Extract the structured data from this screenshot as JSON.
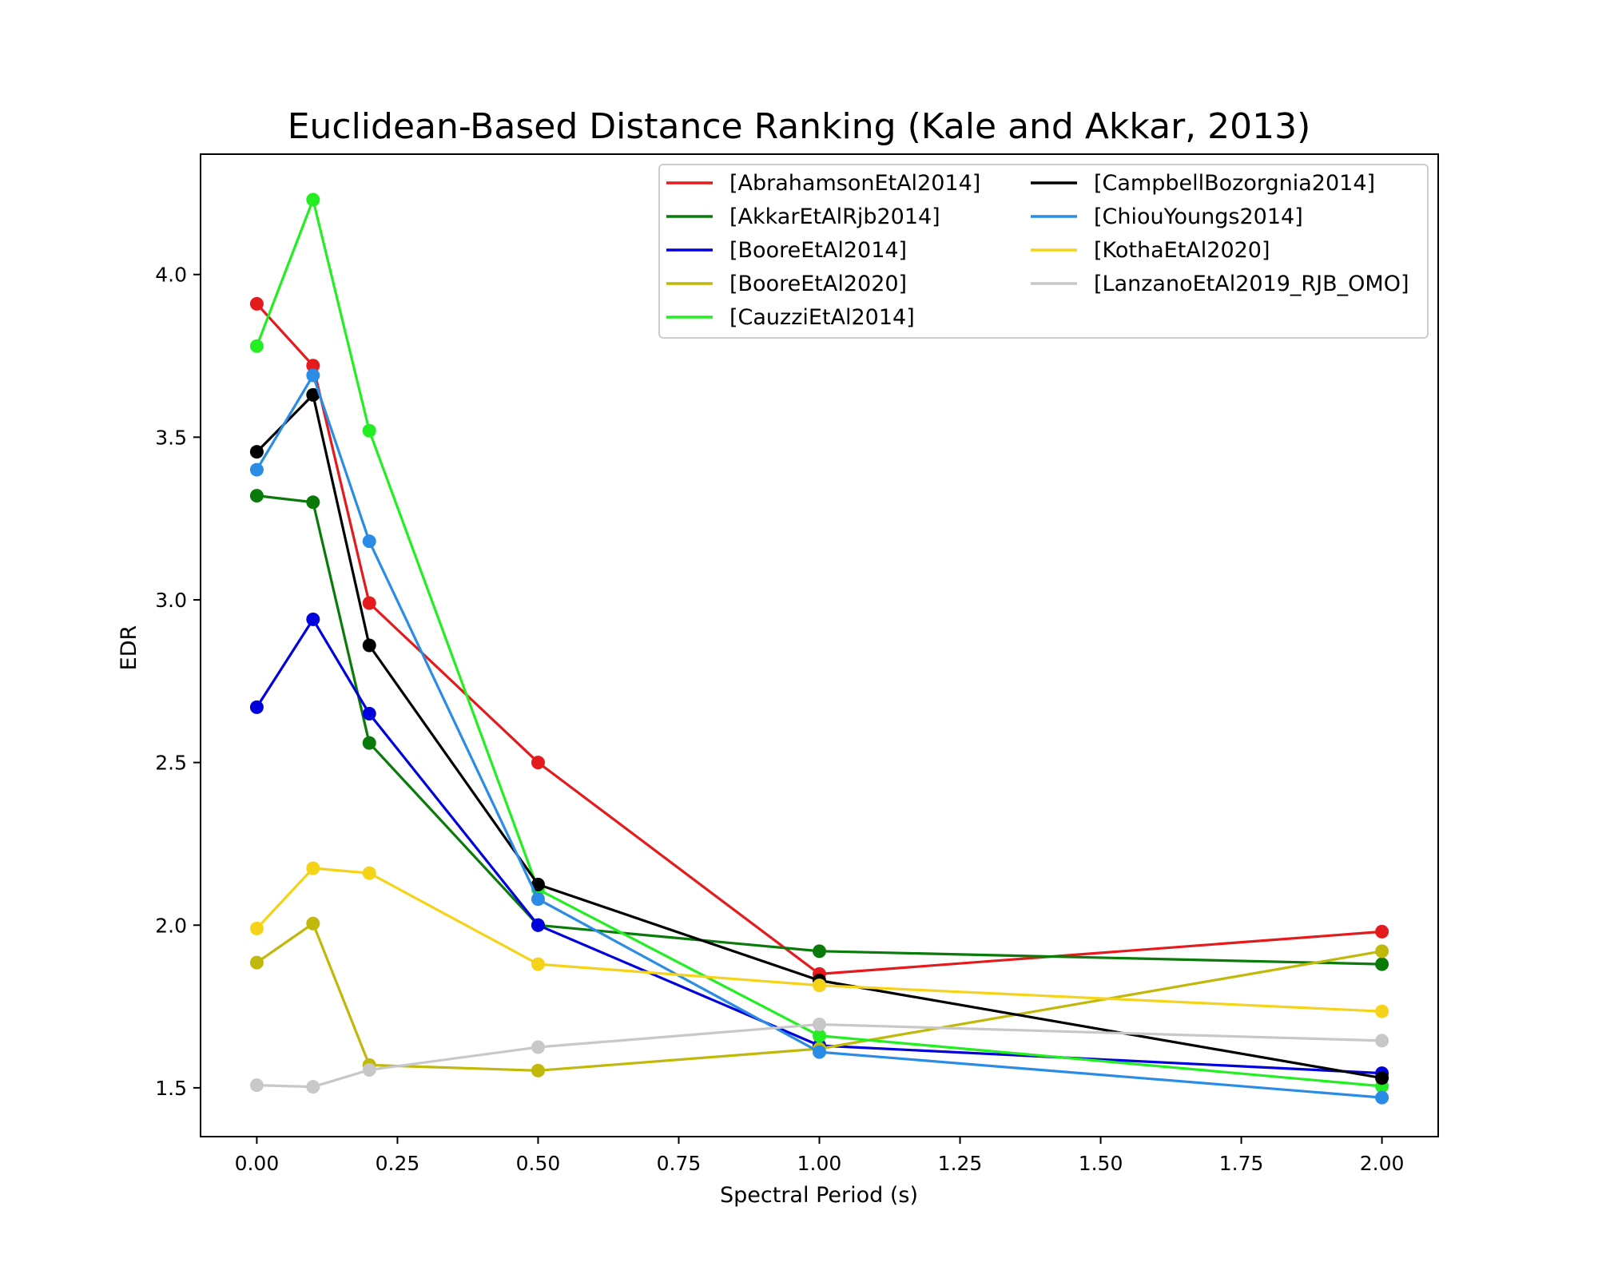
{
  "chart_data": {
    "type": "line",
    "title": "Euclidean-Based Distance Ranking (Kale and Akkar, 2013)",
    "xlabel": "Spectral Period (s)",
    "ylabel": "EDR",
    "xlim": [
      -0.1,
      2.1
    ],
    "ylim": [
      1.35,
      4.37
    ],
    "xticks": [
      0.0,
      0.25,
      0.5,
      0.75,
      1.0,
      1.25,
      1.5,
      1.75,
      2.0
    ],
    "xtick_labels": [
      "0.00",
      "0.25",
      "0.50",
      "0.75",
      "1.00",
      "1.25",
      "1.50",
      "1.75",
      "2.00"
    ],
    "yticks": [
      1.5,
      2.0,
      2.5,
      3.0,
      3.5,
      4.0
    ],
    "ytick_labels": [
      "1.5",
      "2.0",
      "2.5",
      "3.0",
      "3.5",
      "4.0"
    ],
    "grid": false,
    "legend_position": "top-right",
    "legend_columns": 2,
    "x": [
      0.0,
      0.1,
      0.2,
      0.5,
      1.0,
      2.0
    ],
    "series": [
      {
        "name": "[AbrahamsonEtAl2014]",
        "color": "#e41a1c",
        "values": [
          3.91,
          3.72,
          2.99,
          2.5,
          1.85,
          1.98
        ]
      },
      {
        "name": "[AkkarEtAlRjb2014]",
        "color": "#0a7a0a",
        "values": [
          3.32,
          3.3,
          2.56,
          2.0,
          1.92,
          1.88
        ]
      },
      {
        "name": "[BooreEtAl2014]",
        "color": "#0000dd",
        "values": [
          2.67,
          2.94,
          2.65,
          2.0,
          1.63,
          1.545
        ]
      },
      {
        "name": "[BooreEtAl2020]",
        "color": "#c0b80a",
        "values": [
          1.885,
          2.005,
          1.57,
          1.553,
          1.62,
          1.92
        ]
      },
      {
        "name": "[CauzziEtAl2014]",
        "color": "#22ee22",
        "values": [
          3.78,
          4.23,
          3.52,
          2.11,
          1.66,
          1.505
        ]
      },
      {
        "name": "[CampbellBozorgnia2014]",
        "color": "#000000",
        "values": [
          3.455,
          3.63,
          2.86,
          2.125,
          1.83,
          1.53
        ]
      },
      {
        "name": "[ChiouYoungs2014]",
        "color": "#2b8ce6",
        "values": [
          3.4,
          3.69,
          3.18,
          2.08,
          1.61,
          1.47
        ]
      },
      {
        "name": "[KothaEtAl2020]",
        "color": "#f5d318",
        "values": [
          1.99,
          2.175,
          2.16,
          1.88,
          1.815,
          1.735
        ]
      },
      {
        "name": "[LanzanoEtAl2019_RJB_OMO]",
        "color": "#c8c8c8",
        "values": [
          1.508,
          1.503,
          1.555,
          1.625,
          1.695,
          1.645
        ]
      }
    ]
  }
}
